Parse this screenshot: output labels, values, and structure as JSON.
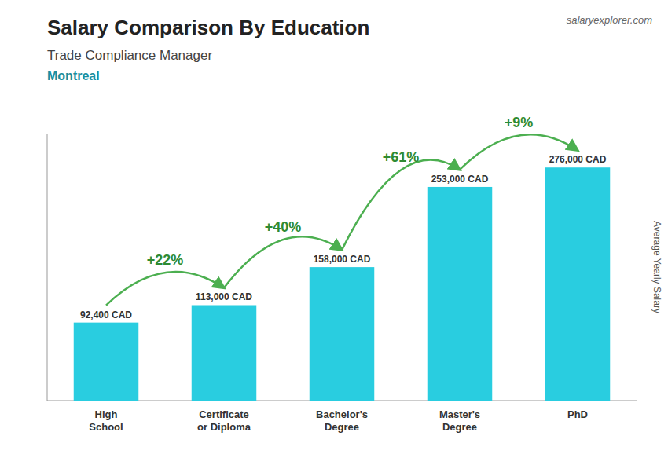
{
  "chart_data": {
    "type": "bar",
    "title": "Salary Comparison By Education",
    "subtitle": "Trade Compliance Manager",
    "annotations": [
      "Montreal",
      "salaryexplorer.com"
    ],
    "ylabel": "Average Yearly Salary",
    "categories": [
      "High\nSchool",
      "Certificate\nor Diploma",
      "Bachelor's\nDegree",
      "Master's\nDegree",
      "PhD"
    ],
    "values": [
      92400,
      113000,
      158000,
      253000,
      276000
    ],
    "value_labels": [
      "92,400 CAD",
      "113,000 CAD",
      "158,000 CAD",
      "253,000 CAD",
      "276,000 CAD"
    ],
    "change_labels": [
      "+22%",
      "+40%",
      "+61%",
      "+9%"
    ],
    "color": "#29cde0",
    "ylim": [
      0,
      316200
    ],
    "data_labels": true,
    "tick_labels": "x"
  }
}
